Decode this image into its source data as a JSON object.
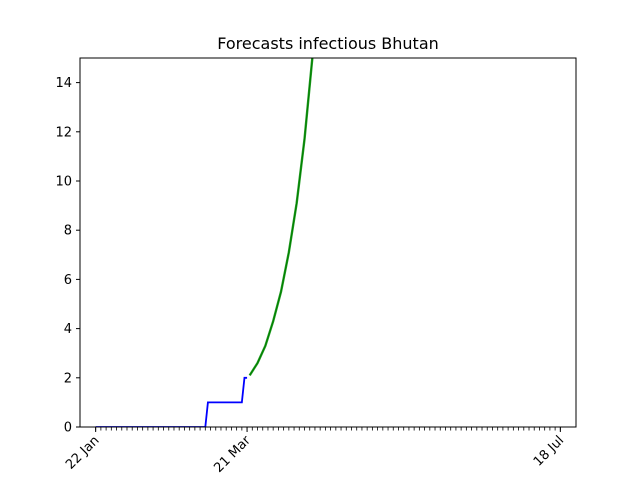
{
  "chart_data": {
    "type": "line",
    "title": "Forecasts infectious Bhutan",
    "xlabel": "",
    "ylabel": "",
    "x_axis": {
      "start": "22 Jan",
      "end": "18 Jul",
      "labeled_ticks": [
        {
          "day": 0,
          "label": "22 Jan"
        },
        {
          "day": 58,
          "label": "21 Mar"
        },
        {
          "day": 178,
          "label": "18 Jul"
        }
      ],
      "minor_tick_every_days": 2,
      "xlim_days": [
        -6,
        184
      ]
    },
    "yticks": [
      0,
      2,
      4,
      6,
      8,
      10,
      12,
      14
    ],
    "ylim": [
      0,
      15
    ],
    "grid": false,
    "legend": "none",
    "colors": {
      "observed": "#0000ff",
      "forecast_dark": "#008000",
      "forecast_light": "#2ca02c"
    },
    "series": [
      {
        "style": "observed",
        "points": [
          {
            "day": 0,
            "y": 0
          },
          {
            "day": 42,
            "y": 0
          },
          {
            "day": 43,
            "y": 1
          },
          {
            "day": 56,
            "y": 1
          },
          {
            "day": 57,
            "y": 2
          },
          {
            "day": 58,
            "y": 2
          }
        ]
      },
      {
        "style": "forecast",
        "points": [
          {
            "day": 59,
            "y": 2.1
          },
          {
            "day": 62,
            "y": 2.6
          },
          {
            "day": 65,
            "y": 3.3
          },
          {
            "day": 68,
            "y": 4.3
          },
          {
            "day": 71,
            "y": 5.5
          },
          {
            "day": 74,
            "y": 7.1
          },
          {
            "day": 77,
            "y": 9.1
          },
          {
            "day": 80,
            "y": 11.7
          },
          {
            "day": 83,
            "y": 15.0
          }
        ]
      }
    ]
  }
}
